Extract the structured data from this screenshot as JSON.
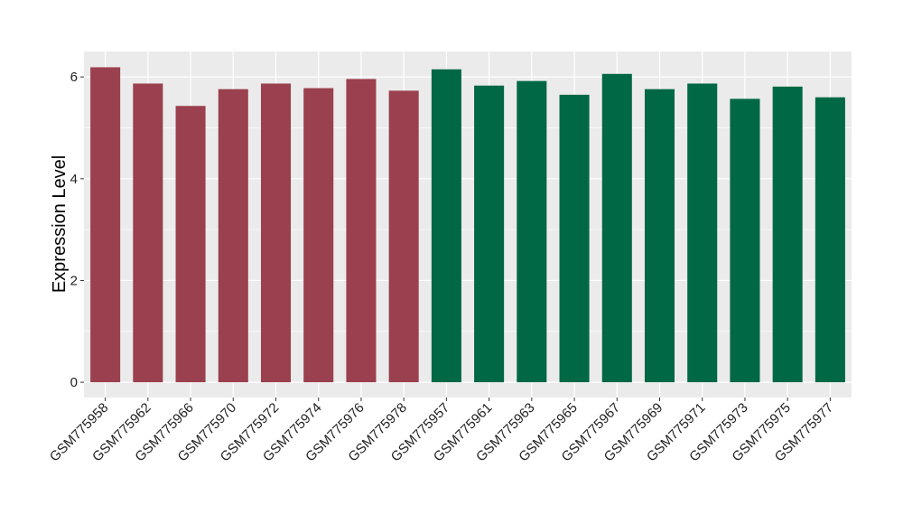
{
  "chart_data": {
    "type": "bar",
    "title": "",
    "xlabel": "",
    "ylabel": "Expression Level",
    "ylim": [
      -0.3,
      6.5
    ],
    "yticks": [
      0,
      2,
      4,
      6
    ],
    "grid": true,
    "legend": "none",
    "categories": [
      "GSM775958",
      "GSM775962",
      "GSM775966",
      "GSM775970",
      "GSM775972",
      "GSM775974",
      "GSM775976",
      "GSM775978",
      "GSM775957",
      "GSM775961",
      "GSM775963",
      "GSM775965",
      "GSM775967",
      "GSM775969",
      "GSM775971",
      "GSM775973",
      "GSM775975",
      "GSM775977"
    ],
    "values": [
      6.19,
      5.87,
      5.43,
      5.76,
      5.87,
      5.78,
      5.96,
      5.73,
      6.15,
      5.83,
      5.92,
      5.65,
      6.06,
      5.76,
      5.87,
      5.57,
      5.81,
      5.6
    ],
    "group_sizes": [
      8,
      10
    ],
    "colors": {
      "group_a": "#9b404e",
      "group_b": "#016845",
      "panel_background": "#ebebeb",
      "gridline": "#ffffff"
    }
  }
}
